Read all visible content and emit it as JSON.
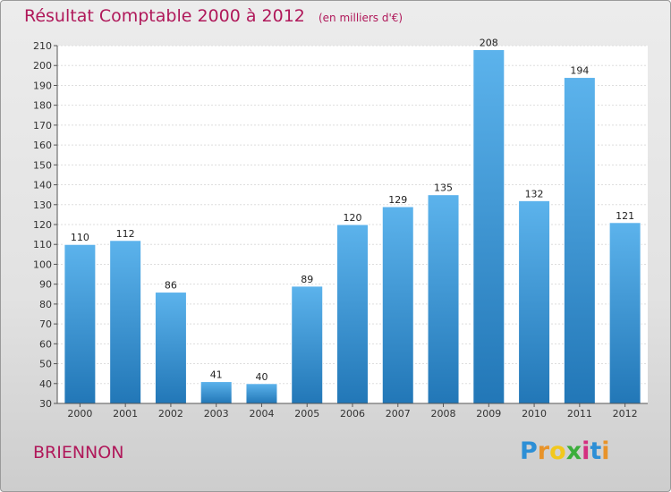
{
  "header": {
    "title": "Résultat Comptable 2000 à 2012",
    "subtitle": "(en milliers d'€)"
  },
  "footer": {
    "town": "BRIENNON",
    "logo_letters": [
      "P",
      "r",
      "o",
      "x",
      "i",
      "t",
      "i"
    ],
    "logo_colors": [
      "#2d8fd6",
      "#e8932a",
      "#f2c81e",
      "#3cae3c",
      "#d42f80",
      "#2d8fd6",
      "#e8932a"
    ]
  },
  "colors": {
    "title": "#b0185a",
    "bar_light": "#5cb3ec",
    "bar_dark": "#2277b7"
  },
  "chart_data": {
    "type": "bar",
    "categories": [
      "2000",
      "2001",
      "2002",
      "2003",
      "2004",
      "2005",
      "2006",
      "2007",
      "2008",
      "2009",
      "2010",
      "2011",
      "2012"
    ],
    "values": [
      110,
      112,
      86,
      41,
      40,
      89,
      120,
      129,
      135,
      208,
      132,
      194,
      121
    ],
    "data_labels": [
      "110",
      "112",
      "86",
      "41",
      "40",
      "89",
      "120",
      "129",
      "135",
      "208",
      "132",
      "194",
      "121"
    ],
    "y_ticks": [
      "30",
      "40",
      "50",
      "60",
      "70",
      "80",
      "90",
      "100",
      "110",
      "120",
      "130",
      "140",
      "150",
      "160",
      "170",
      "180",
      "190",
      "200",
      "210"
    ],
    "ylim": [
      30,
      210
    ],
    "grid": true
  }
}
